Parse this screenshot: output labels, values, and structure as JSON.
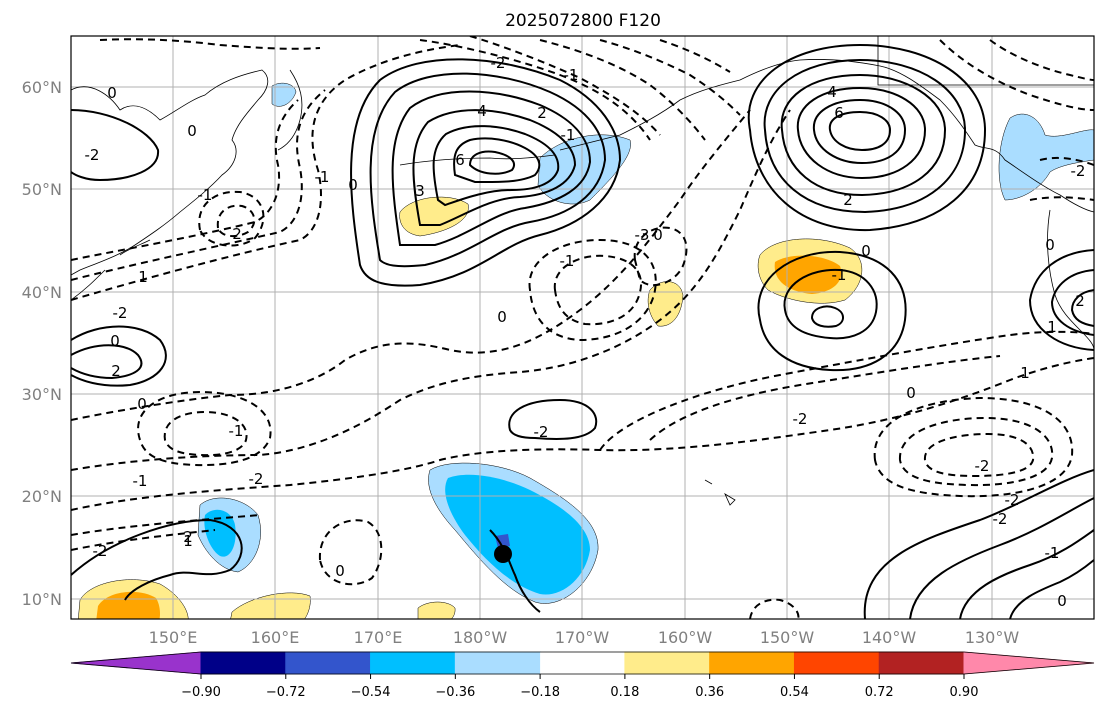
{
  "figure": {
    "title": "2025072800 F120",
    "latitude_labels": [
      "60°N",
      "50°N",
      "40°N",
      "30°N",
      "20°N",
      "10°N"
    ],
    "longitude_labels": [
      "150°E",
      "160°E",
      "170°E",
      "180°W",
      "170°W",
      "160°W",
      "150°W",
      "140°W",
      "130°W"
    ],
    "colorbar": {
      "tick_labels": [
        "−0.90",
        "−0.72",
        "−0.54",
        "−0.36",
        "−0.18",
        "0.18",
        "0.36",
        "0.54",
        "0.72",
        "0.90"
      ],
      "colors": [
        "#9933cc",
        "#000088",
        "#3355cc",
        "#00bfff",
        "#aaddff",
        "#ffffff",
        "#ffec8b",
        "#ffa500",
        "#ff4500",
        "#b22222",
        "#ff88aa"
      ]
    },
    "contour_labels": [
      "0",
      "-2",
      "4",
      "6",
      "2",
      "-1",
      "-3",
      "3",
      "0",
      "-1",
      "0",
      "2",
      "-1",
      "1",
      "-2",
      "0",
      "2",
      "0",
      "-1",
      "-2",
      "-1",
      "-2",
      "0",
      "-1",
      "0",
      "-2",
      "-1",
      "-2",
      "0",
      "1",
      "-2",
      "-2",
      "-1",
      "0",
      "-2",
      "0",
      "2",
      "-2",
      "1",
      "6",
      "4",
      "0",
      "-1",
      "2",
      "-2",
      "1",
      "2",
      "0"
    ],
    "shading_colors": {
      "light_blue": "#aaddff",
      "blue": "#00bfff",
      "dark_blue": "#3355cc",
      "light_yellow": "#ffec8b",
      "orange": "#ffa500"
    }
  }
}
